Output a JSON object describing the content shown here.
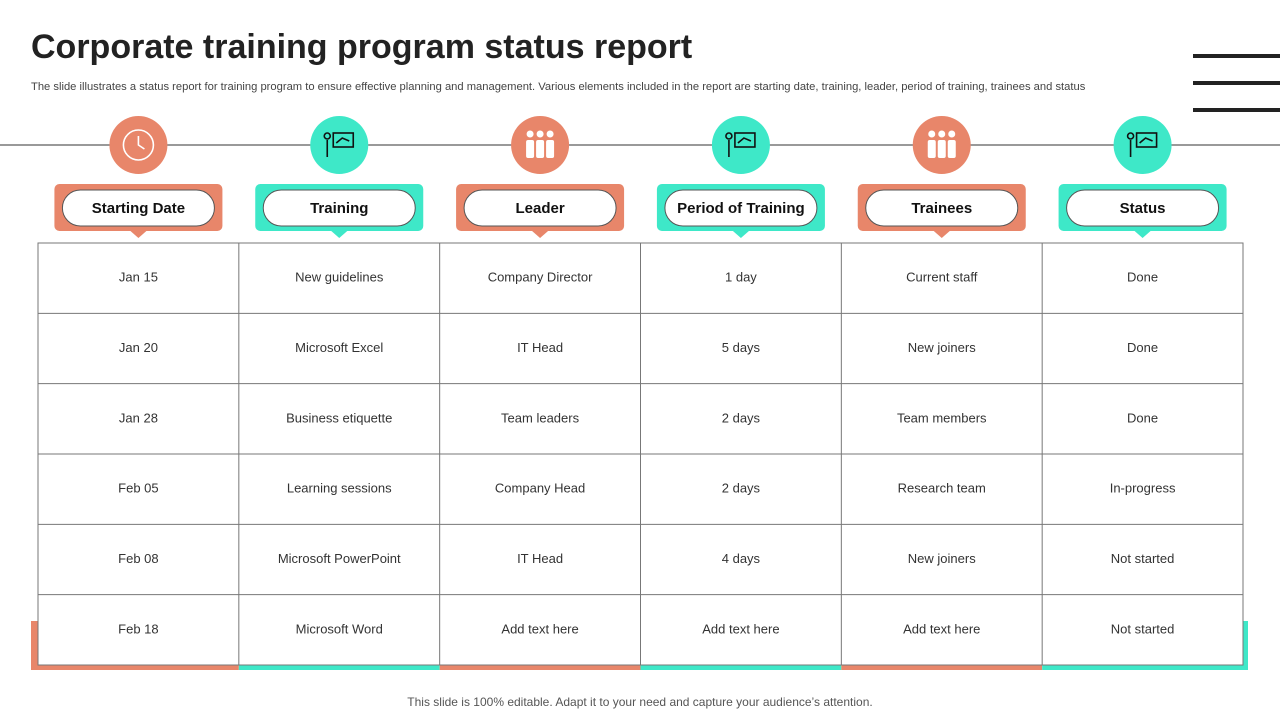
{
  "header": {
    "title": "Corporate training program status report",
    "subtitle": "The slide illustrates a status report for training program to ensure effective planning and management. Various elements included in the report are starting date, training, leader, period of training, trainees and status"
  },
  "table": {
    "columns": [
      "Starting Date",
      "Training",
      "Leader",
      "Period of Training",
      "Trainees",
      "Status"
    ],
    "rows": [
      [
        "Jan 15",
        "New guidelines",
        "Company Director",
        "1 day",
        "Current staff",
        "Done"
      ],
      [
        "Jan 20",
        "Microsoft Excel",
        "IT Head",
        "5 days",
        "New joiners",
        "Done"
      ],
      [
        "Jan 28",
        "Business etiquette",
        "Team leaders",
        "2 days",
        "Team members",
        "Done"
      ],
      [
        "Feb 05",
        "Learning sessions",
        "Company Head",
        "2 days",
        "Research team",
        "In-progress"
      ],
      [
        "Feb 08",
        "Microsoft PowerPoint",
        "IT Head",
        "4 days",
        "New joiners",
        "Not started"
      ],
      [
        "Feb 18",
        "Microsoft Word",
        "Add text here",
        "Add text here",
        "Add text here",
        "Not started"
      ]
    ]
  },
  "footer": "This slide is 100% editable. Adapt it to your need and capture your audience’s attention."
}
